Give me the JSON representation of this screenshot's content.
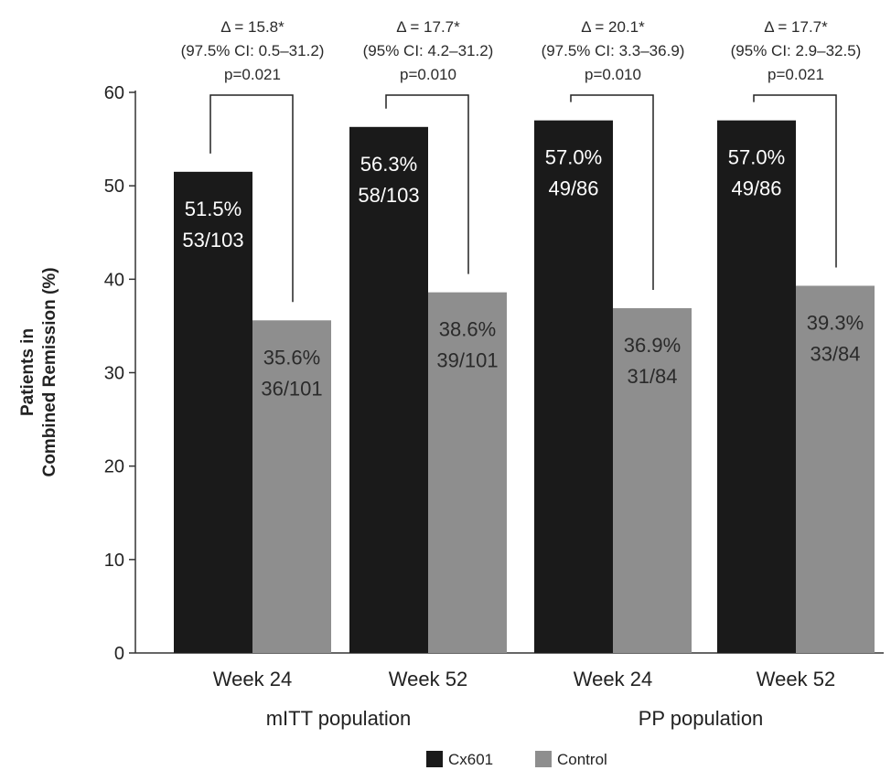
{
  "chart_data": {
    "type": "bar",
    "ylabel_lines": [
      "Patients in",
      "Combined Remission (%)"
    ],
    "ylim": [
      0,
      60
    ],
    "yticks": [
      0,
      10,
      20,
      30,
      40,
      50,
      60
    ],
    "ytick_labels": [
      "0",
      "10",
      "20",
      "30",
      "40",
      "50",
      "60"
    ],
    "groups": [
      "mITT population",
      "PP population"
    ],
    "categories": [
      "Week 24",
      "Week 52",
      "Week 24",
      "Week 52"
    ],
    "category_group": [
      0,
      0,
      1,
      1
    ],
    "series": [
      {
        "name": "Cx601",
        "color": "#1a1a1a",
        "values": [
          51.5,
          56.3,
          57.0,
          57.0
        ],
        "percent_labels": [
          "51.5%",
          "56.3%",
          "57.0%",
          "57.0%"
        ],
        "count_labels": [
          "53/103",
          "58/103",
          "49/86",
          "49/86"
        ]
      },
      {
        "name": "Control",
        "color": "#8e8e8e",
        "values": [
          35.6,
          38.6,
          36.9,
          39.3
        ],
        "percent_labels": [
          "35.6%",
          "38.6%",
          "36.9%",
          "39.3%"
        ],
        "count_labels": [
          "36/101",
          "39/101",
          "31/84",
          "33/84"
        ]
      }
    ],
    "annotations": [
      {
        "delta": "Δ = 15.8*",
        "ci": "(97.5% CI: 0.5–31.2)",
        "p": "p=0.021"
      },
      {
        "delta": "Δ = 17.7*",
        "ci": "(95% CI: 4.2–31.2)",
        "p": "p=0.010"
      },
      {
        "delta": "Δ = 20.1*",
        "ci": "(97.5% CI: 3.3–36.9)",
        "p": "p=0.010"
      },
      {
        "delta": "Δ = 17.7*",
        "ci": "(95% CI: 2.9–32.5)",
        "p": "p=0.021"
      }
    ],
    "legend": [
      {
        "name": "Cx601",
        "color": "#1a1a1a"
      },
      {
        "name": "Control",
        "color": "#8e8e8e"
      }
    ],
    "legend_position": "bottom-center",
    "grid": false
  }
}
